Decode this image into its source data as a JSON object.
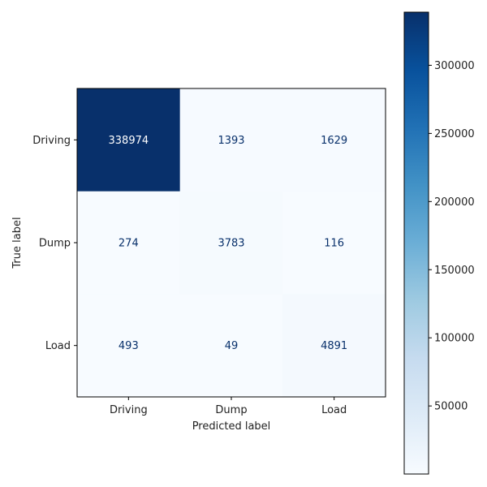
{
  "chart_data": {
    "type": "heatmap",
    "title": "",
    "xlabel": "Predicted label",
    "ylabel": "True label",
    "x_categories": [
      "Driving",
      "Dump",
      "Load"
    ],
    "y_categories": [
      "Driving",
      "Dump",
      "Load"
    ],
    "values": [
      [
        338974,
        1393,
        1629
      ],
      [
        274,
        3783,
        116
      ],
      [
        493,
        49,
        4891
      ]
    ],
    "colormap": "Blues",
    "color_low": "#f7fbff",
    "color_high": "#08306b",
    "text_color_dark": "#08306b",
    "text_color_light": "#ffffff",
    "colorbar": {
      "range": [
        49,
        338974
      ],
      "ticks": [
        50000,
        100000,
        150000,
        200000,
        250000,
        300000
      ],
      "tick_labels": [
        "50000",
        "100000",
        "150000",
        "200000",
        "250000",
        "300000"
      ]
    },
    "grid": false
  }
}
